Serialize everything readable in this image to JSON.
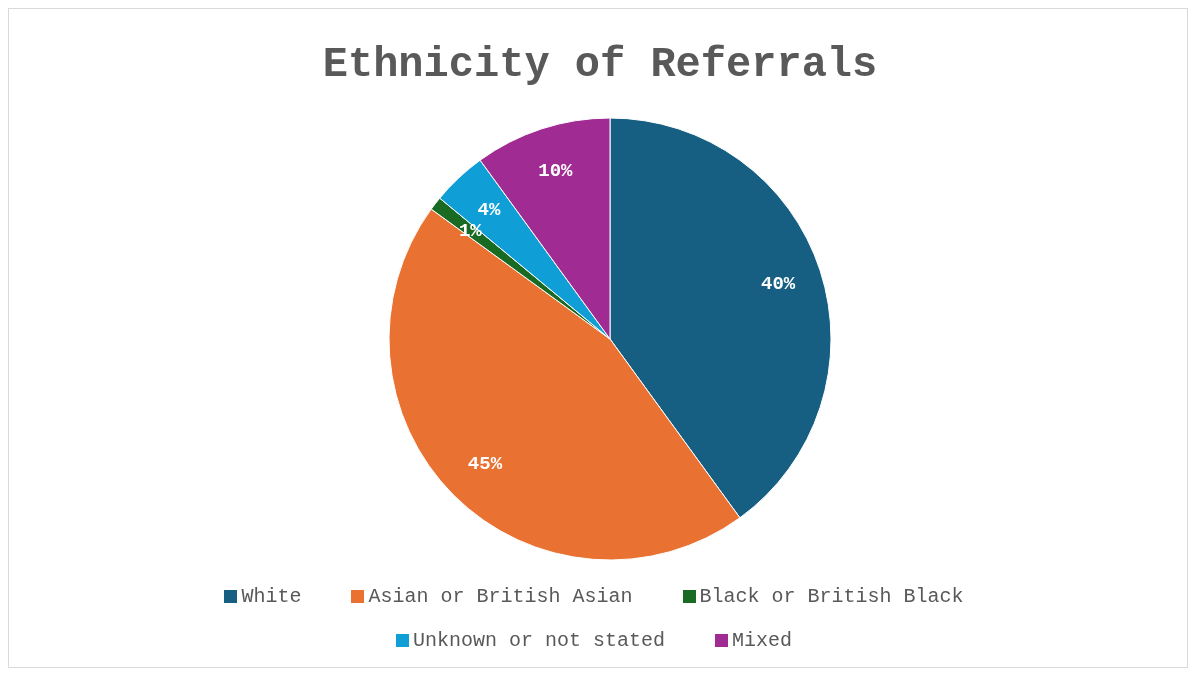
{
  "chart_data": {
    "type": "pie",
    "title": "Ethnicity of Referrals",
    "categories": [
      "White",
      "Asian or British Asian",
      "Black or British Black",
      "Unknown or not stated",
      "Mixed"
    ],
    "values": [
      40,
      45,
      1,
      4,
      10
    ],
    "value_labels": [
      "40%",
      "45%",
      "1%",
      "4%",
      "10%"
    ],
    "colors": [
      "#175f82",
      "#e97132",
      "#196b24",
      "#0f9ed5",
      "#a02b93"
    ],
    "legend": "bottom"
  }
}
